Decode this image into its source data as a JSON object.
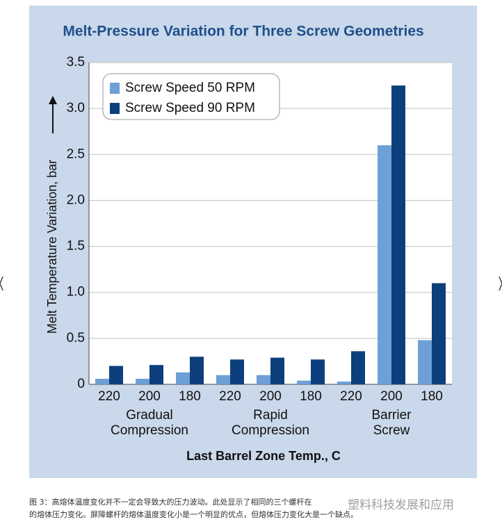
{
  "chart_data": {
    "type": "bar",
    "title": "Melt-Pressure Variation for Three Screw Geometries",
    "x_label": "Last Barrel Zone Temp., C",
    "y_label": "Melt Temperature Variation, bar",
    "categories": [
      "220",
      "200",
      "180",
      "220",
      "200",
      "180",
      "220",
      "200",
      "180"
    ],
    "group_labels": [
      [
        "Gradual",
        "Compression"
      ],
      [
        "Rapid",
        "Compression"
      ],
      [
        "Barrier",
        "Screw"
      ]
    ],
    "series": [
      {
        "name": "Screw Speed 50 RPM",
        "color": "#6e9fd6",
        "values": [
          0.06,
          0.06,
          0.13,
          0.1,
          0.1,
          0.04,
          0.03,
          2.6,
          0.48
        ]
      },
      {
        "name": "Screw Speed 90 RPM",
        "color": "#0d3f7c",
        "values": [
          0.2,
          0.21,
          0.3,
          0.27,
          0.29,
          0.27,
          0.36,
          3.25,
          1.1
        ]
      }
    ],
    "ylim": [
      0,
      3.5
    ],
    "yticks": [
      0,
      0.5,
      {
        "value": 1,
        "label": "1.0"
      },
      1.5,
      {
        "value": 2,
        "label": "2.0"
      },
      2.5,
      {
        "value": 3,
        "label": "3.0"
      },
      3.5
    ],
    "grid": true,
    "legend": "top-left"
  },
  "caption": [
    "图 3：高熔体温度变化并不一定会导致大的压力波动。此处显示了相同的三个螺杆在",
    "的熔体压力变化。屏障螺杆的熔体温度变化小是一个明显的优点，但熔体压力变化大是一个缺点。"
  ],
  "watermark": "塑料科技发展和应用"
}
